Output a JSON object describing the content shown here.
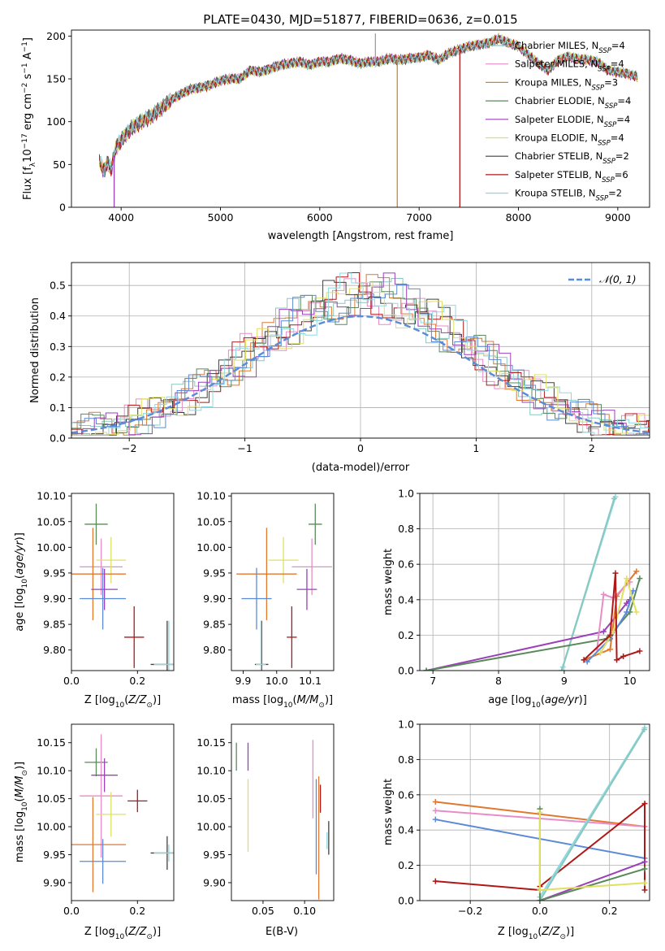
{
  "figure": {
    "title": "PLATE=0430, MJD=51877, FIBERID=0636, z=0.015"
  },
  "model_legend": [
    {
      "label": "Chabrier MILES, N",
      "sub": "SSP",
      "suffix": "=4",
      "color": "#88c8c0"
    },
    {
      "label": "Salpeter MILES, N",
      "sub": "SSP",
      "suffix": "=4",
      "color": "#e88cc8"
    },
    {
      "label": "Kroupa MILES, N",
      "sub": "SSP",
      "suffix": "=3",
      "color": "#c88a30"
    },
    {
      "label": "Chabrier ELODIE, N",
      "sub": "SSP",
      "suffix": "=4",
      "color": "#5a8a5a"
    },
    {
      "label": "Salpeter ELODIE, N",
      "sub": "SSP",
      "suffix": "=4",
      "color": "#9a40b8"
    },
    {
      "label": "Kroupa ELODIE, N",
      "sub": "SSP",
      "suffix": "=4",
      "color": "#e0e060"
    },
    {
      "label": "Chabrier STELIB, N",
      "sub": "SSP",
      "suffix": "=2",
      "color": "#404040"
    },
    {
      "label": "Salpeter STELIB, N",
      "sub": "SSP",
      "suffix": "=6",
      "color": "#b01818"
    },
    {
      "label": "Kroupa STELIB, N",
      "sub": "SSP",
      "suffix": "=2",
      "color": "#90d8e0"
    }
  ],
  "chart_data": [
    {
      "id": "spectrum",
      "type": "line",
      "title": "PLATE=0430, MJD=51877, FIBERID=0636, z=0.015",
      "xlabel": "wavelength [Angstrom, rest frame]",
      "ylabel_parts": {
        "pre": "Flux [f",
        "sub": "λ",
        "mid": "10",
        "sup1": "−17",
        "post": " erg cm",
        "sup2": "−2",
        "post2": " s",
        "sup3": "−1",
        "post3": " A",
        "sup4": "−1",
        "end": "]"
      },
      "xlim": [
        3500,
        9320
      ],
      "ylim": [
        0,
        207
      ],
      "xticks": [
        4000,
        5000,
        6000,
        7000,
        8000,
        9000
      ],
      "yticks": [
        0,
        50,
        100,
        150,
        200
      ],
      "x_range": [
        3780,
        9200
      ],
      "anchors_x": [
        3780,
        3830,
        3860,
        3900,
        3950,
        4000,
        4100,
        4200,
        4300,
        4400,
        4500,
        4600,
        4700,
        4800,
        4900,
        5000,
        5100,
        5200,
        5300,
        5400,
        5500,
        5600,
        5700,
        5800,
        5900,
        6000,
        6100,
        6200,
        6300,
        6400,
        6500,
        6600,
        6700,
        6800,
        6900,
        7000,
        7100,
        7200,
        7300,
        7400,
        7500,
        7600,
        7700,
        7800,
        7900,
        8000,
        8100,
        8200,
        8300,
        8400,
        8500,
        8600,
        8700,
        8800,
        8900,
        9000,
        9100,
        9200
      ],
      "anchors_y": [
        55,
        42,
        52,
        45,
        70,
        78,
        92,
        100,
        106,
        115,
        125,
        132,
        138,
        140,
        143,
        148,
        150,
        150,
        160,
        158,
        162,
        166,
        168,
        170,
        166,
        170,
        170,
        174,
        172,
        168,
        170,
        170,
        174,
        172,
        174,
        175,
        178,
        172,
        180,
        184,
        188,
        190,
        192,
        197,
        192,
        188,
        178,
        168,
        160,
        172,
        176,
        173,
        172,
        170,
        160,
        158,
        156,
        152
      ],
      "spikes": [
        {
          "x": 3930,
          "ymin": 0,
          "color": "#9a40b8"
        },
        {
          "x": 6780,
          "ymin": 0,
          "color": "#c88a30"
        },
        {
          "x": 7410,
          "ymin": 0,
          "color": "#b01818"
        },
        {
          "x": 6560,
          "ymax": 203,
          "color": "#a0a0a0"
        }
      ]
    },
    {
      "id": "residuals",
      "type": "line",
      "xlabel": "(data-model)/error",
      "ylabel": "Normed distribution",
      "xlim": [
        -2.5,
        2.5
      ],
      "ylim": [
        0,
        0.575
      ],
      "xticks": [
        -2,
        -1,
        0,
        1,
        2
      ],
      "yticks": [
        0.0,
        0.1,
        0.2,
        0.3,
        0.4,
        0.5
      ],
      "grid": true,
      "legend_label": "𝒩(0, 1)",
      "gauss_color": "#5b8ad8",
      "bin_width": 0.1,
      "hist_colors": [
        "#e07830",
        "#e88cc8",
        "#88c8c0",
        "#404040",
        "#5a8a5a",
        "#b01818",
        "#9a40b8",
        "#e0e060",
        "#5b8ad8",
        "#90d8e0"
      ]
    },
    {
      "id": "age-vs-Z",
      "type": "scatter",
      "xlabel_parts": {
        "pre": "Z [log",
        "sub": "10",
        "mid": "(",
        "it": "Z/Z",
        "sub2": "⊙",
        "end": ")]"
      },
      "ylabel_parts": {
        "pre": "age  [log",
        "sub": "10",
        "mid": "(",
        "it": "age/yr",
        "end": ")]"
      },
      "xlim": [
        0,
        0.31
      ],
      "ylim": [
        9.76,
        10.105
      ],
      "xticks": [
        0.0,
        0.2
      ],
      "yticks": [
        9.8,
        9.85,
        9.9,
        9.95,
        10.0,
        10.05,
        10.1
      ],
      "points": [
        {
          "x": 0.075,
          "xerr": 0.035,
          "y": 10.045,
          "yerr": 0.04,
          "color": "#5a8a5a"
        },
        {
          "x": 0.09,
          "xerr": 0.065,
          "y": 9.962,
          "yerr": 0.055,
          "color": "#e88cc8"
        },
        {
          "x": 0.12,
          "xerr": 0.045,
          "y": 9.975,
          "yerr": 0.045,
          "color": "#e0e060"
        },
        {
          "x": 0.065,
          "xerr": 0.1,
          "y": 9.948,
          "yerr": 0.09,
          "color": "#e07830"
        },
        {
          "x": 0.1,
          "xerr": 0.04,
          "y": 9.918,
          "yerr": 0.04,
          "color": "#9a40b8"
        },
        {
          "x": 0.095,
          "xerr": 0.07,
          "y": 9.9,
          "yerr": 0.06,
          "color": "#5b8ad8"
        },
        {
          "x": 0.19,
          "xerr": 0.03,
          "y": 9.825,
          "yerr": 0.06,
          "color": "#b01818"
        },
        {
          "x": 0.29,
          "xerr": 0.05,
          "y": 9.772,
          "yerr": 0.085,
          "color": "#404040"
        },
        {
          "x": 0.295,
          "xerr": 0.045,
          "y": 9.772,
          "yerr": 0.085,
          "color": "#90d8e0"
        }
      ]
    },
    {
      "id": "age-vs-mass",
      "type": "scatter",
      "xlabel_parts": {
        "pre": "mass [log",
        "sub": "10",
        "mid": "(",
        "it": "M/M",
        "sub2": "⊙",
        "end": ")]"
      },
      "xlim": [
        9.865,
        10.17
      ],
      "ylim": [
        9.76,
        10.105
      ],
      "xticks": [
        9.9,
        10.0,
        10.1
      ],
      "yticks": [
        9.8,
        9.85,
        9.9,
        9.95,
        10.0,
        10.05,
        10.1
      ],
      "points": [
        {
          "x": 10.115,
          "xerr": 0.02,
          "y": 10.045,
          "yerr": 0.04,
          "color": "#5a8a5a"
        },
        {
          "x": 10.105,
          "xerr": 0.06,
          "y": 9.962,
          "yerr": 0.055,
          "color": "#e88cc8"
        },
        {
          "x": 10.02,
          "xerr": 0.045,
          "y": 9.975,
          "yerr": 0.045,
          "color": "#e0e060"
        },
        {
          "x": 9.97,
          "xerr": 0.09,
          "y": 9.948,
          "yerr": 0.09,
          "color": "#e07830"
        },
        {
          "x": 10.09,
          "xerr": 0.03,
          "y": 9.918,
          "yerr": 0.04,
          "color": "#9a40b8"
        },
        {
          "x": 9.94,
          "xerr": 0.045,
          "y": 9.9,
          "yerr": 0.06,
          "color": "#5b8ad8"
        },
        {
          "x": 10.045,
          "xerr": 0.015,
          "y": 9.825,
          "yerr": 0.06,
          "color": "#b01818"
        },
        {
          "x": 9.955,
          "xerr": 0.02,
          "y": 9.772,
          "yerr": 0.085,
          "color": "#404040"
        },
        {
          "x": 9.953,
          "xerr": 0.015,
          "y": 9.772,
          "yerr": 0.085,
          "color": "#90d8e0"
        }
      ]
    },
    {
      "id": "weight-vs-age",
      "type": "line",
      "xlabel_parts": {
        "pre": "age  [log",
        "sub": "10",
        "mid": "(",
        "it": "age/yr",
        "end": ")]"
      },
      "ylabel": "mass weight",
      "xlim": [
        6.8,
        10.3
      ],
      "ylim": [
        0,
        1
      ],
      "xticks": [
        7,
        8,
        9,
        10
      ],
      "yticks": [
        0.0,
        0.2,
        0.4,
        0.6,
        0.8,
        1.0
      ],
      "grid": true,
      "series": [
        {
          "color": "#90d8e0",
          "x": [
            8.98,
            9.78
          ],
          "y": [
            0.02,
            0.98
          ]
        },
        {
          "color": "#88c8c0",
          "x": [
            8.96,
            9.76
          ],
          "y": [
            0.0,
            0.97
          ]
        },
        {
          "color": "#9a40b8",
          "x": [
            6.9,
            9.6,
            9.95,
            10.0
          ],
          "y": [
            0.0,
            0.22,
            0.38,
            0.4
          ]
        },
        {
          "color": "#5a8a5a",
          "x": [
            6.9,
            9.65,
            10.0,
            10.15
          ],
          "y": [
            0.0,
            0.18,
            0.33,
            0.52
          ]
        },
        {
          "color": "#e07830",
          "x": [
            9.3,
            9.7,
            9.8,
            10.1
          ],
          "y": [
            0.06,
            0.12,
            0.42,
            0.56
          ]
        },
        {
          "color": "#e88cc8",
          "x": [
            9.5,
            9.6,
            9.75,
            10.0
          ],
          "y": [
            0.12,
            0.43,
            0.41,
            0.5
          ]
        },
        {
          "color": "#5b8ad8",
          "x": [
            9.35,
            9.7,
            9.95,
            10.05
          ],
          "y": [
            0.05,
            0.18,
            0.33,
            0.45
          ]
        },
        {
          "color": "#e0e060",
          "x": [
            9.55,
            9.75,
            9.95,
            10.1
          ],
          "y": [
            0.1,
            0.22,
            0.52,
            0.33
          ]
        },
        {
          "color": "#b01818",
          "x": [
            9.3,
            9.7,
            9.78,
            9.8,
            9.9,
            10.15
          ],
          "y": [
            0.06,
            0.2,
            0.55,
            0.06,
            0.08,
            0.11
          ]
        }
      ]
    },
    {
      "id": "mass-vs-Z",
      "type": "scatter",
      "xlabel_parts": {
        "pre": "Z [log",
        "sub": "10",
        "mid": "(",
        "it": "Z/Z",
        "sub2": "⊙",
        "end": ")]"
      },
      "ylabel_parts": {
        "pre": "mass [log",
        "sub": "10",
        "mid": "(",
        "it": "M/M",
        "sub2": "⊙",
        "end": ")]"
      },
      "xlim": [
        0,
        0.31
      ],
      "ylim": [
        9.868,
        10.183
      ],
      "xticks": [
        0.0,
        0.2
      ],
      "yticks": [
        9.9,
        9.95,
        10.0,
        10.05,
        10.1,
        10.15
      ],
      "points": [
        {
          "x": 0.075,
          "xerr": 0.035,
          "y": 10.115,
          "yerr": 0.025,
          "color": "#5a8a5a"
        },
        {
          "x": 0.09,
          "xerr": 0.065,
          "y": 10.055,
          "yerr": 0.11,
          "color": "#e88cc8"
        },
        {
          "x": 0.12,
          "xerr": 0.045,
          "y": 10.022,
          "yerr": 0.04,
          "color": "#e0e060"
        },
        {
          "x": 0.065,
          "xerr": 0.1,
          "y": 9.968,
          "yerr": 0.085,
          "color": "#e07830"
        },
        {
          "x": 0.1,
          "xerr": 0.04,
          "y": 10.092,
          "yerr": 0.03,
          "color": "#9a40b8"
        },
        {
          "x": 0.095,
          "xerr": 0.07,
          "y": 9.938,
          "yerr": 0.04,
          "color": "#5b8ad8"
        },
        {
          "x": 0.2,
          "xerr": 0.03,
          "y": 10.046,
          "yerr": 0.02,
          "color": "#b01818"
        },
        {
          "x": 0.29,
          "xerr": 0.05,
          "y": 9.953,
          "yerr": 0.03,
          "color": "#404040"
        },
        {
          "x": 0.295,
          "xerr": 0.045,
          "y": 9.953,
          "yerr": 0.015,
          "color": "#90d8e0"
        }
      ]
    },
    {
      "id": "mass-vs-EBV",
      "type": "scatter",
      "xlabel": "E(B-V)",
      "xlim": [
        0.012,
        0.135
      ],
      "ylim": [
        9.868,
        10.183
      ],
      "xticks": [
        0.05,
        0.1
      ],
      "yticks": [
        9.9,
        9.95,
        10.0,
        10.05,
        10.1,
        10.15
      ],
      "points": [
        {
          "x": 0.018,
          "y": 10.125,
          "yerr": 0.025,
          "color": "#5a8a5a"
        },
        {
          "x": 0.032,
          "y": 10.125,
          "yerr": 0.025,
          "color": "#9a40b8"
        },
        {
          "x": 0.032,
          "y": 10.02,
          "yerr": 0.065,
          "color": "#e0e060"
        },
        {
          "x": 0.11,
          "y": 10.085,
          "yerr": 0.07,
          "color": "#e88cc8"
        },
        {
          "x": 0.114,
          "y": 10.0,
          "yerr": 0.085,
          "color": "#5b8ad8"
        },
        {
          "x": 0.117,
          "y": 9.98,
          "yerr": 0.11,
          "color": "#e07830"
        },
        {
          "x": 0.119,
          "y": 10.05,
          "yerr": 0.025,
          "color": "#b01818"
        },
        {
          "x": 0.129,
          "y": 9.98,
          "yerr": 0.03,
          "color": "#404040"
        },
        {
          "x": 0.127,
          "y": 9.975,
          "yerr": 0.015,
          "color": "#90d8e0"
        }
      ]
    },
    {
      "id": "weight-vs-Z",
      "type": "line",
      "xlabel_parts": {
        "pre": "Z [log",
        "sub": "10",
        "mid": "(",
        "it": "Z/Z",
        "sub2": "⊙",
        "end": ")]"
      },
      "ylabel": "mass weight",
      "xlim": [
        -0.345,
        0.315
      ],
      "ylim": [
        0,
        1
      ],
      "xticks": [
        -0.2,
        0.0,
        0.2
      ],
      "yticks": [
        0.0,
        0.2,
        0.4,
        0.6,
        0.8,
        1.0
      ],
      "grid": true,
      "series": [
        {
          "color": "#e07830",
          "x": [
            -0.3,
            0.301
          ],
          "y": [
            0.56,
            0.42
          ]
        },
        {
          "color": "#e88cc8",
          "x": [
            -0.3,
            0.301
          ],
          "y": [
            0.51,
            0.42
          ]
        },
        {
          "color": "#5b8ad8",
          "x": [
            -0.3,
            0.301
          ],
          "y": [
            0.46,
            0.24
          ]
        },
        {
          "color": "#b01818",
          "x": [
            -0.3,
            0.0,
            0.0,
            0.301,
            0.301
          ],
          "y": [
            0.11,
            0.06,
            0.08,
            0.55,
            0.06
          ]
        },
        {
          "color": "#90d8e0",
          "x": [
            0.0,
            0.301
          ],
          "y": [
            0.02,
            0.98
          ]
        },
        {
          "color": "#88c8c0",
          "x": [
            0.0,
            0.3
          ],
          "y": [
            0.0,
            0.97
          ]
        },
        {
          "color": "#9a40b8",
          "x": [
            0.0,
            0.301
          ],
          "y": [
            0.0,
            0.22
          ]
        },
        {
          "color": "#5a8a5a",
          "x": [
            0.0,
            0.0,
            0.301
          ],
          "y": [
            0.52,
            0.0,
            0.18
          ]
        },
        {
          "color": "#e0e060",
          "x": [
            0.0,
            0.0,
            0.301
          ],
          "y": [
            0.5,
            0.06,
            0.1
          ]
        }
      ]
    }
  ]
}
